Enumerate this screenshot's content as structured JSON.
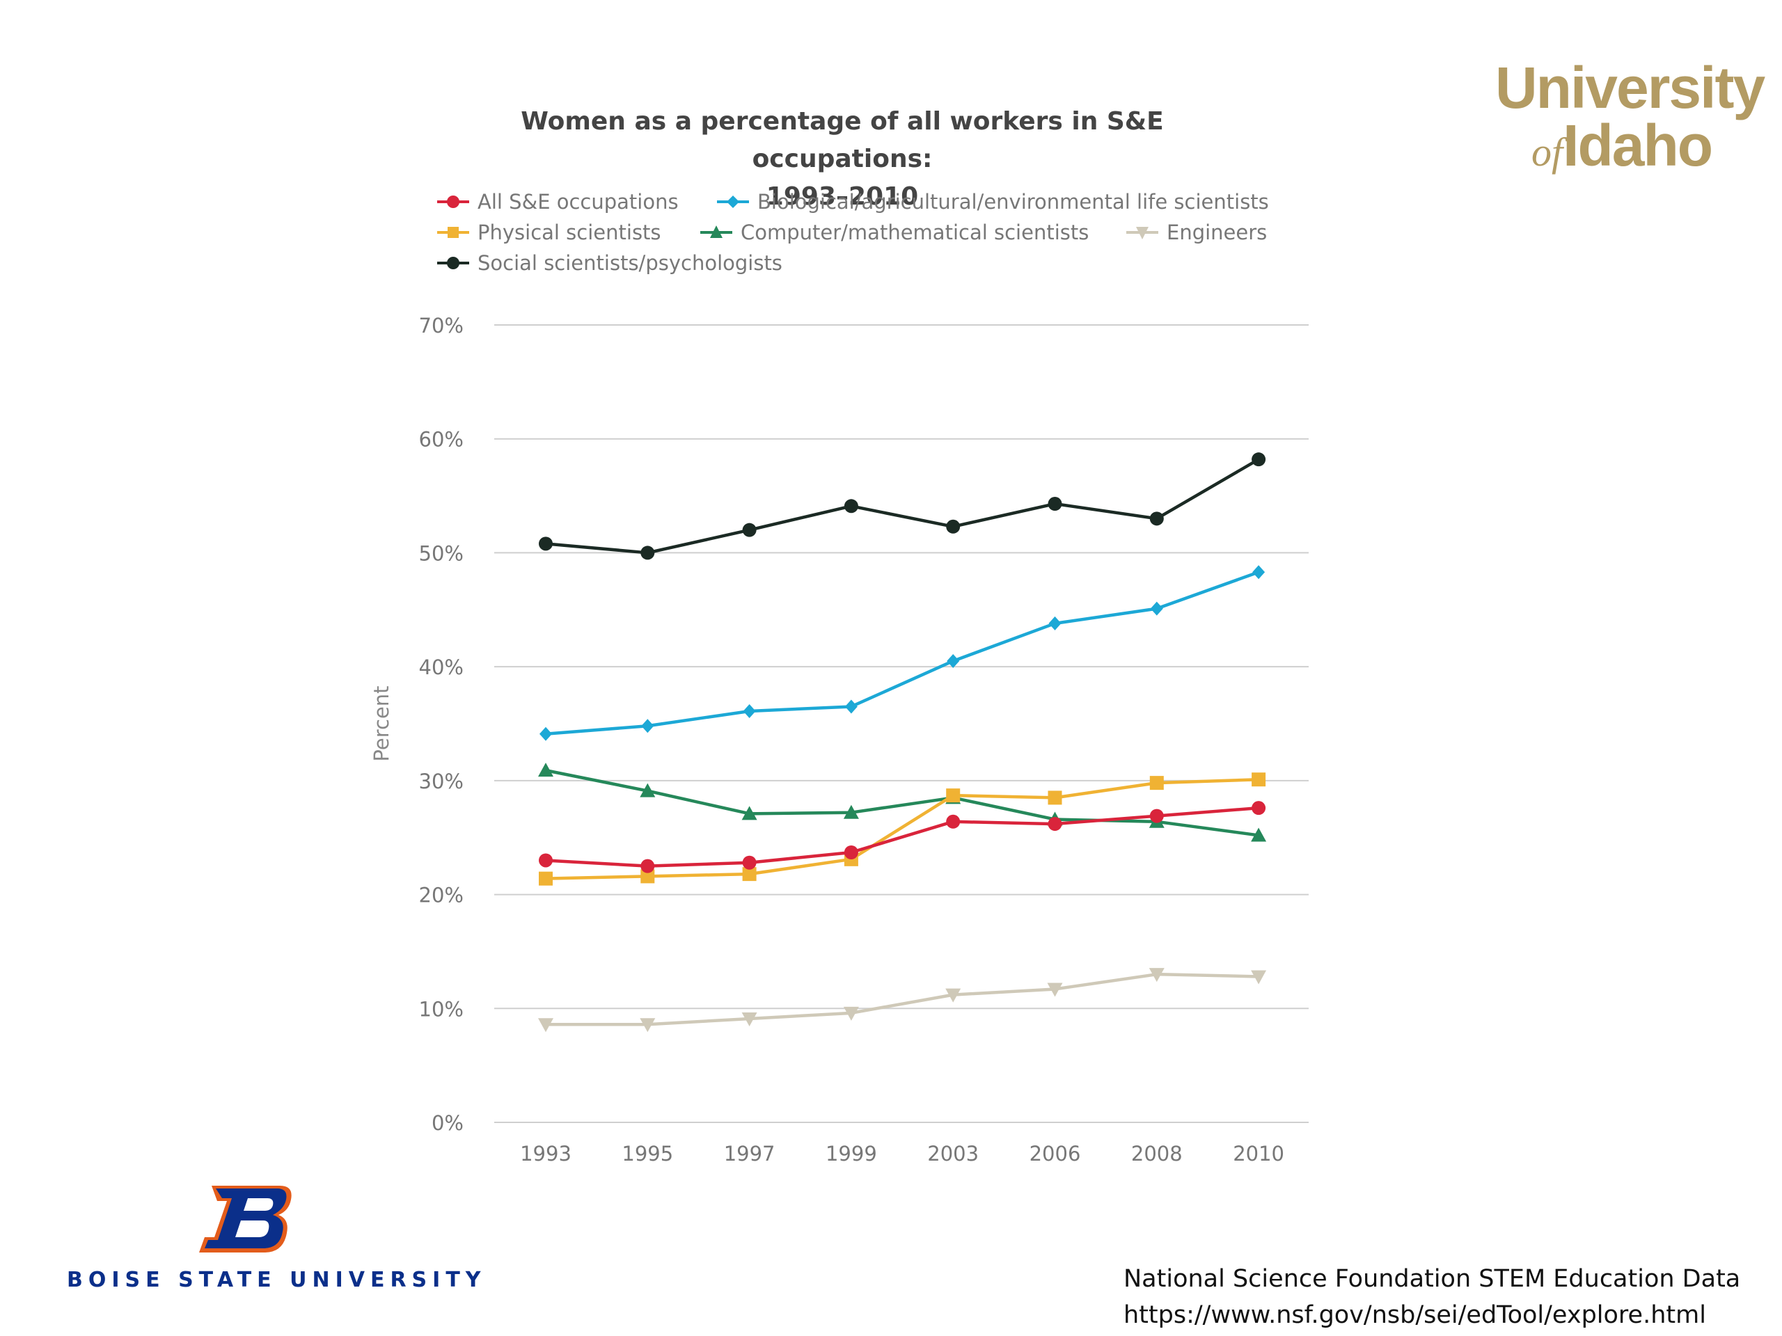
{
  "chart_data": {
    "type": "line",
    "title": "Women as a percentage of all workers in S&E occupations:",
    "subtitle": "1993–2010",
    "ylabel": "Percent",
    "xlabel": "",
    "categories": [
      "1993",
      "1995",
      "1997",
      "1999",
      "2003",
      "2006",
      "2008",
      "2010"
    ],
    "ylim": [
      0,
      70
    ],
    "yticks": [
      0,
      10,
      20,
      30,
      40,
      50,
      60,
      70
    ],
    "ytick_labels": [
      "0%",
      "10%",
      "20%",
      "30%",
      "40%",
      "50%",
      "60%",
      "70%"
    ],
    "grid": true,
    "legend_position": "top",
    "series": [
      {
        "name": "All S&E occupations",
        "color": "#d9243b",
        "marker": "circle",
        "values": [
          23.0,
          22.5,
          22.8,
          23.7,
          26.4,
          26.2,
          26.9,
          27.6
        ]
      },
      {
        "name": "Biological/agricultural/environmental life scientists",
        "color": "#1ca8d6",
        "marker": "diamond",
        "values": [
          34.1,
          34.8,
          36.1,
          36.5,
          40.5,
          43.8,
          45.1,
          48.3
        ]
      },
      {
        "name": "Physical scientists",
        "color": "#f0b233",
        "marker": "square",
        "values": [
          21.4,
          21.6,
          21.8,
          23.1,
          28.7,
          28.5,
          29.8,
          30.1
        ]
      },
      {
        "name": "Computer/mathematical scientists",
        "color": "#25885a",
        "marker": "triangle-up",
        "values": [
          30.9,
          29.1,
          27.1,
          27.2,
          28.5,
          26.6,
          26.4,
          25.2
        ]
      },
      {
        "name": "Engineers",
        "color": "#cfc9b8",
        "marker": "triangle-down",
        "values": [
          8.6,
          8.6,
          9.1,
          9.6,
          11.2,
          11.7,
          13.0,
          12.8
        ]
      },
      {
        "name": "Social scientists/psychologists",
        "color": "#1b2a24",
        "marker": "circle",
        "values": [
          50.8,
          50.0,
          52.0,
          54.1,
          52.3,
          54.3,
          53.0,
          58.2
        ]
      }
    ]
  },
  "logos": {
    "uidaho": {
      "university": "University",
      "of": "of",
      "idaho": "Idaho"
    },
    "boise_state": {
      "name": "BOISE STATE UNIVERSITY",
      "color": "#0b2f8a",
      "accent": "#e35c1b"
    }
  },
  "source": {
    "line1": "National Science Foundation STEM Education Data",
    "line2": "https://www.nsf.gov/nsb/sei/edTool/explore.html"
  }
}
